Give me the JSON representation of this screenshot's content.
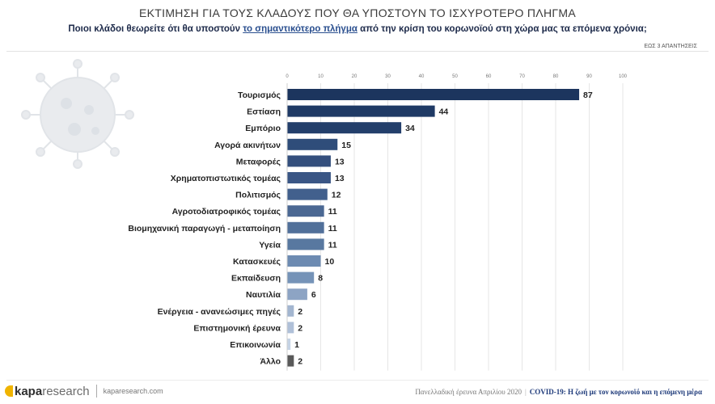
{
  "header": {
    "title": "ΕΚΤΙΜΗΣΗ ΓΙΑ ΤΟΥΣ ΚΛΑΔΟΥΣ ΠΟΥ ΘΑ ΥΠΟΣΤΟΥΝ ΤΟ ΙΣΧΥΡΟΤΕΡΟ ΠΛΗΓΜΑ",
    "question_pre": "Ποιοι κλάδοι θεωρείτε ότι θα υποστούν ",
    "question_highlight": "το σημαντικότερο πλήγμα",
    "question_post": " από την κρίση του κορωνοϊού στη χώρα μας τα επόμενα χρόνια;",
    "note": "ΕΩΣ 3 ΑΠΑΝΤΗΣΕΙΣ"
  },
  "chart_data": {
    "type": "bar",
    "orientation": "horizontal",
    "categories": [
      "Τουρισμός",
      "Εστίαση",
      "Εμπόριο",
      "Αγορά ακινήτων",
      "Μεταφορές",
      "Χρηματοπιστωτικός τομέας",
      "Πολιτισμός",
      "Αγροτοδιατροφικός τομέας",
      "Βιομηχανική παραγωγή - μεταποίηση",
      "Υγεία",
      "Κατασκευές",
      "Εκπαίδευση",
      "Ναυτιλία",
      "Ενέργεια - ανανεώσιμες πηγές",
      "Επιστημονική έρευνα",
      "Επικοινωνία",
      "Άλλο"
    ],
    "values": [
      87,
      44,
      34,
      15,
      13,
      13,
      12,
      11,
      11,
      11,
      10,
      8,
      6,
      2,
      2,
      1,
      2
    ],
    "bar_colors": [
      "#1c355e",
      "#1f3a65",
      "#233f6b",
      "#2f4d7a",
      "#344f7d",
      "#3a5685",
      "#42608d",
      "#4b6893",
      "#51709a",
      "#5878a0",
      "#6d8bb2",
      "#7593b8",
      "#8da4c4",
      "#a3b6d0",
      "#b0c0d8",
      "#c5d3e5",
      "#595959"
    ],
    "xlim": [
      0,
      100
    ],
    "xticks": [
      0,
      10,
      20,
      30,
      40,
      50,
      60,
      70,
      80,
      90,
      100
    ],
    "grid": true
  },
  "footer": {
    "brand_bold": "kapa",
    "brand_light": "research",
    "url": "kaparesearch.com",
    "survey": "Πανελλαδική έρευνα Απριλίου 2020",
    "study": "COVID-19: Η ζωή με τον κορωνοϊό και η επόμενη μέρα"
  }
}
